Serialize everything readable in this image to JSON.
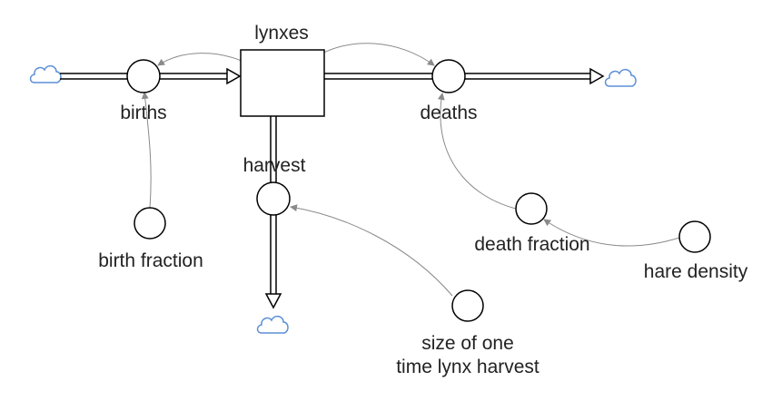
{
  "diagram": {
    "stock": {
      "label": "lynxes"
    },
    "flows": {
      "births": {
        "label": "births"
      },
      "deaths": {
        "label": "deaths"
      },
      "harvest": {
        "label": "harvest"
      }
    },
    "converters": {
      "birth_fraction": {
        "label": "birth fraction"
      },
      "death_fraction": {
        "label": "death fraction"
      },
      "hare_density": {
        "label": "hare density"
      },
      "size_of_one_time_lynx_harvest": {
        "lines": [
          "size of one",
          "time lynx harvest"
        ]
      }
    }
  },
  "colors": {
    "line": "#000000",
    "link": "#8a8a8a",
    "cloud": "#5b8fd6",
    "text": "#222222"
  }
}
